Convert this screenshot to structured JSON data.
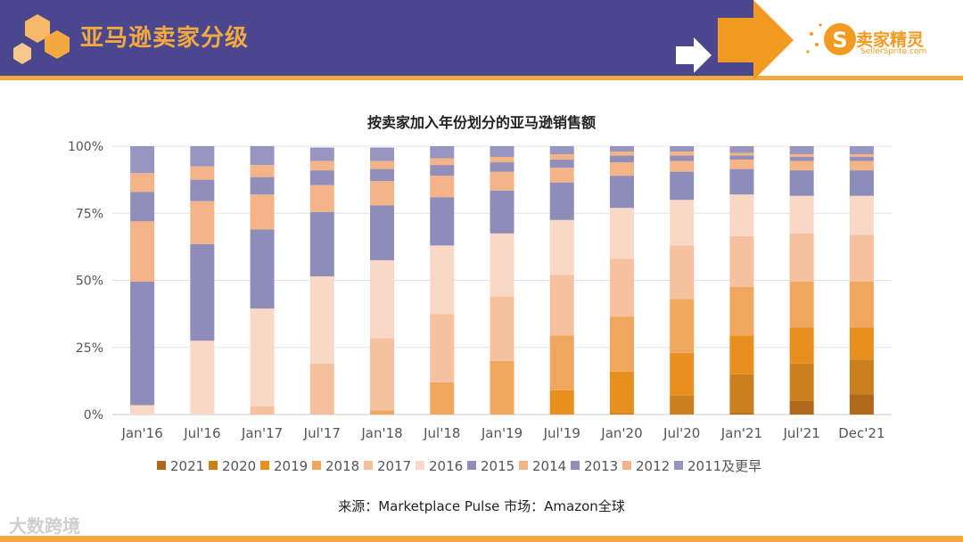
{
  "header": {
    "title": "亚马逊卖家分级"
  },
  "brand": {
    "name": "卖家精灵",
    "site": "SellerSprite.com"
  },
  "watermark": "大数跨境",
  "source": "来源：Marketplace Pulse    市场：Amazon全球",
  "colors": {
    "header_bg": "#4a478f",
    "accent": "#f4a940",
    "arrow": "#f39a21"
  },
  "chart_data": {
    "type": "bar",
    "stacked": true,
    "title": "按卖家加入年份划分的亚马逊销售额",
    "categories": [
      "Jan'16",
      "Jul'16",
      "Jan'17",
      "Jul'17",
      "Jan'18",
      "Jul'18",
      "Jan'19",
      "Jul'19",
      "Jan'20",
      "Jul'20",
      "Jan'21",
      "Jul'21",
      "Dec'21"
    ],
    "ylim": [
      0,
      100
    ],
    "yticks": [
      "0%",
      "25%",
      "50%",
      "75%",
      "100%"
    ],
    "legend_position": "bottom",
    "series": [
      {
        "name": "2021",
        "color": "#b0681a",
        "values": [
          0,
          0,
          0,
          0,
          0,
          0,
          0,
          0,
          0,
          0,
          0.5,
          5,
          7.5
        ]
      },
      {
        "name": "2020",
        "color": "#cc7f1f",
        "values": [
          0,
          0,
          0,
          0,
          0,
          0,
          0,
          0,
          0.5,
          7,
          14.5,
          14,
          13
        ]
      },
      {
        "name": "2019",
        "color": "#e8901f",
        "values": [
          0,
          0,
          0,
          0,
          0,
          0,
          0,
          9,
          15.5,
          16,
          14.5,
          13.5,
          12
        ]
      },
      {
        "name": "2018",
        "color": "#f1a660",
        "values": [
          0,
          0,
          0,
          0,
          1.5,
          12,
          20,
          20.5,
          20.5,
          20,
          18,
          17,
          17
        ]
      },
      {
        "name": "2017",
        "color": "#f5c19e",
        "values": [
          0,
          0,
          3,
          19,
          27,
          25.5,
          24,
          22.5,
          21.5,
          20,
          19,
          18,
          17.5
        ]
      },
      {
        "name": "2016",
        "color": "#f9d8c7",
        "values": [
          3.5,
          27.5,
          36.5,
          32.5,
          29,
          25.5,
          23.5,
          20.5,
          19,
          17,
          15.5,
          14,
          14.5
        ]
      },
      {
        "name": "2015",
        "color": "#8e8cb8",
        "values": [
          46,
          36,
          29.5,
          24,
          20.5,
          18,
          16,
          14,
          12,
          10.5,
          9.5,
          9.5,
          9.5
        ]
      },
      {
        "name": "2014",
        "color": "#f4b488",
        "values": [
          22.5,
          16,
          13,
          10,
          9,
          8,
          7,
          5.5,
          5,
          4,
          3.5,
          3.5,
          3.5
        ]
      },
      {
        "name": "2013",
        "color": "#918fba",
        "values": [
          11,
          8,
          6.5,
          5.5,
          4.5,
          4,
          3.5,
          3,
          2.5,
          2,
          1.5,
          1.5,
          1.5
        ]
      },
      {
        "name": "2012",
        "color": "#f4b488",
        "values": [
          7,
          5,
          4.5,
          3.5,
          3,
          2.5,
          2,
          2,
          1.5,
          1.5,
          1,
          1,
          1
        ]
      },
      {
        "name": "2011及更早",
        "color": "#9896c0",
        "values": [
          10,
          7.5,
          7,
          5,
          5,
          4.5,
          4,
          3,
          2,
          2,
          2.5,
          3,
          3
        ]
      }
    ]
  }
}
